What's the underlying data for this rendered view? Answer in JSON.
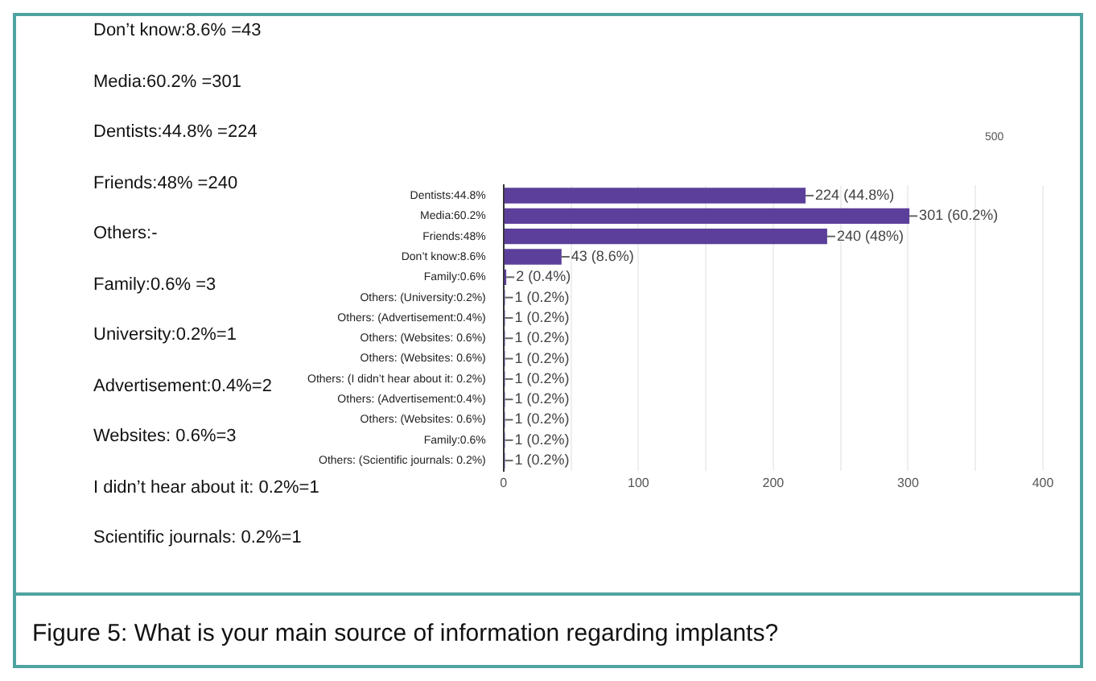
{
  "chart_data": {
    "type": "bar",
    "orientation": "horizontal",
    "categories": [
      "Dentists:44.8%",
      "Media:60.2%",
      "Friends:48%",
      "Don’t know:8.6%",
      "Family:0.6%",
      "Others: (University:0.2%)",
      "Others: (Advertisement:0.4%)",
      "Others: (Websites: 0.6%)",
      "Others: (Websites: 0.6%)",
      "Others: (I didn’t hear about it: 0.2%)",
      "Others: (Advertisement:0.4%)",
      "Others: (Websites: 0.6%)",
      "Family:0.6%",
      "Others: (Scientific journals: 0.2%)"
    ],
    "values": [
      224,
      301,
      240,
      43,
      2,
      1,
      1,
      1,
      1,
      1,
      1,
      1,
      1,
      1
    ],
    "color": "#5b3f9a",
    "value_labels": [
      "224 (44.8%)",
      "301 (60.2%)",
      "240 (48%)",
      "43 (8.6%)",
      "2 (0.4%)",
      "1 (0.2%)",
      "1 (0.2%)",
      "1 (0.2%)",
      "1 (0.2%)",
      "1 (0.2%)",
      "1 (0.2%)",
      "1 (0.2%)",
      "1 (0.2%)",
      "1 (0.2%)"
    ],
    "xlim": [
      0,
      400
    ],
    "xticks": [
      0,
      {
        "value": 50,
        "label": null
      },
      100,
      {
        "value": 150,
        "label": null
      },
      200,
      {
        "value": 250,
        "label": null
      },
      300,
      {
        "value": 350,
        "label": null
      },
      400
    ],
    "grid": "x",
    "legend": false,
    "annotations": [
      "Don’t know:8.6% =43",
      "Media:60.2% =301",
      "Dentists:44.8% =224",
      "Friends:48% =240",
      "Others:-",
      "Family:0.6% =3",
      "University:0.2%=1",
      "Advertisement:0.4%=2",
      "Websites: 0.6%=3",
      "I didn’t hear about it: 0.2%=1",
      "Scientific journals: 0.2%=1",
      "500",
      "Figure 5: What is your main source of information regarding implants?"
    ]
  }
}
